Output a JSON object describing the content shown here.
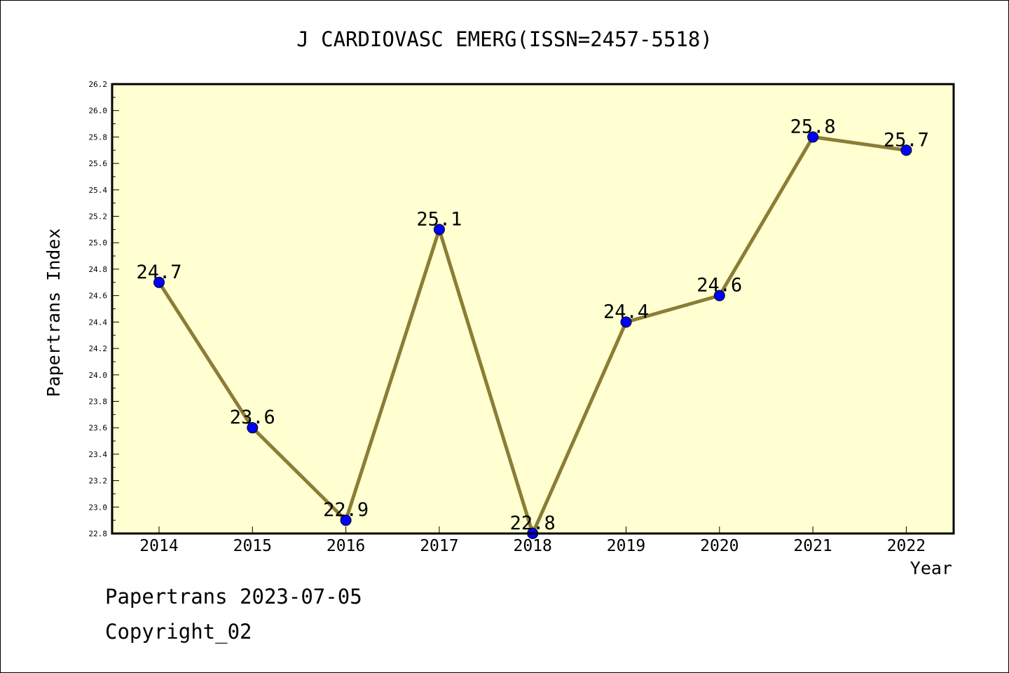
{
  "footer": {
    "date_line": "Papertrans 2023-07-05",
    "copyright_line": "Copyright_02"
  },
  "colors": {
    "plot_background": "#ffffd2",
    "line": "#8b7d35",
    "marker": "#0000ff"
  },
  "chart_data": {
    "type": "line",
    "title": "J CARDIOVASC EMERG(ISSN=2457-5518)",
    "xlabel": "Year",
    "ylabel": "Papertrans Index",
    "x": [
      "2014",
      "2015",
      "2016",
      "2017",
      "2018",
      "2019",
      "2020",
      "2021",
      "2022"
    ],
    "series": [
      {
        "values": [
          24.7,
          23.6,
          22.9,
          25.1,
          22.8,
          24.4,
          24.6,
          25.8,
          25.7
        ],
        "labels": [
          "24.7",
          "23.6",
          "22.9",
          "25.1",
          "22.8",
          "24.4",
          "24.6",
          "25.8",
          "25.7"
        ]
      }
    ],
    "ylim": [
      22.8,
      26.2
    ],
    "yticks": [
      "22.8",
      "23.0",
      "23.2",
      "23.4",
      "23.6",
      "23.8",
      "24.0",
      "24.2",
      "24.4",
      "24.6",
      "24.8",
      "25.0",
      "25.2",
      "25.4",
      "25.6",
      "25.8",
      "26.0",
      "26.2"
    ],
    "grid": false,
    "legend": "none"
  }
}
